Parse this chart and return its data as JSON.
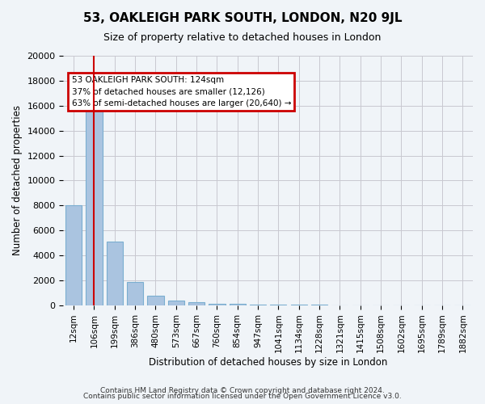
{
  "title1": "53, OAKLEIGH PARK SOUTH, LONDON, N20 9JL",
  "title2": "Size of property relative to detached houses in London",
  "xlabel": "Distribution of detached houses by size in London",
  "ylabel": "Number of detached properties",
  "bar_values": [
    8050,
    16800,
    5100,
    1900,
    800,
    400,
    230,
    160,
    110,
    80,
    60,
    45,
    35,
    28,
    22,
    18,
    14,
    11,
    9,
    7
  ],
  "bar_labels": [
    "12sqm",
    "106sqm",
    "199sqm",
    "386sqm",
    "480sqm",
    "573sqm",
    "667sqm",
    "760sqm",
    "854sqm",
    "947sqm",
    "1041sqm",
    "1134sqm",
    "1228sqm",
    "1321sqm",
    "1415sqm",
    "1508sqm",
    "1602sqm",
    "1695sqm",
    "1789sqm",
    "1882sqm"
  ],
  "bar_color": "#aac4e0",
  "bar_edgecolor": "#7aaed0",
  "property_line_x": 1,
  "annotation_title": "53 OAKLEIGH PARK SOUTH: 124sqm",
  "annotation_line1": "37% of detached houses are smaller (12,126)",
  "annotation_line2": "63% of semi-detached houses are larger (20,640) →",
  "annotation_box_color": "#cc0000",
  "vline_color": "#cc0000",
  "ylim": [
    0,
    20000
  ],
  "yticks": [
    0,
    2000,
    4000,
    6000,
    8000,
    10000,
    12000,
    14000,
    16000,
    18000,
    20000
  ],
  "footer1": "Contains HM Land Registry data © Crown copyright and database right 2024.",
  "footer2": "Contains public sector information licensed under the Open Government Licence v3.0.",
  "bg_color": "#f0f4f8",
  "plot_bg_color": "#f0f4f8"
}
